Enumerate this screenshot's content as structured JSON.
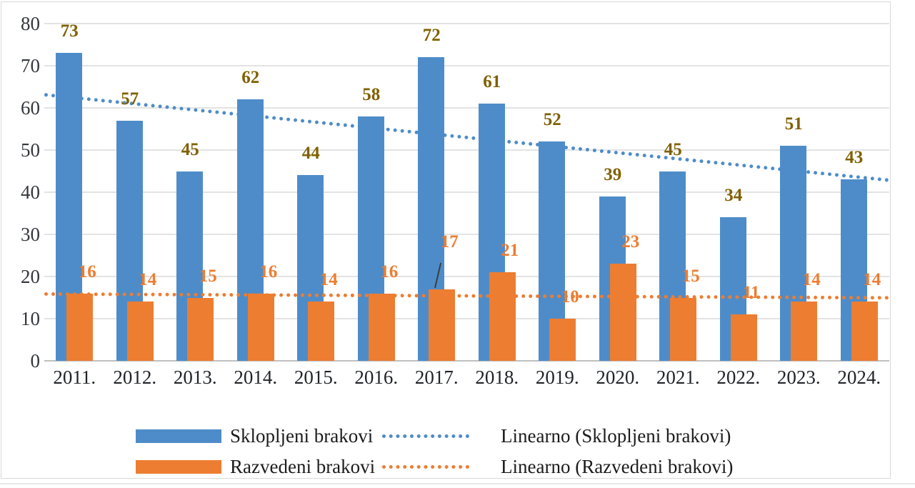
{
  "chart_data": {
    "type": "bar",
    "categories": [
      "2011.",
      "2012.",
      "2013.",
      "2014.",
      "2015.",
      "2016.",
      "2017.",
      "2018.",
      "2019.",
      "2020.",
      "2021.",
      "2022.",
      "2023.",
      "2024."
    ],
    "series": [
      {
        "name": "Sklopljeni brakovi",
        "values": [
          73,
          57,
          45,
          62,
          44,
          58,
          72,
          61,
          52,
          39,
          45,
          34,
          51,
          43
        ],
        "color": "#4e8cc9",
        "label_color": "#7f6000"
      },
      {
        "name": "Razvedeni brakovi",
        "values": [
          16,
          14,
          15,
          16,
          14,
          16,
          17,
          21,
          10,
          23,
          15,
          11,
          14,
          14
        ],
        "color": "#ed7d31",
        "label_color": "#ed7d31"
      }
    ],
    "trendlines": [
      {
        "name": "Linearno (Sklopljeni brakovi)",
        "color": "#4e8cc9",
        "style": "dotted",
        "start_value": 63.6,
        "end_value": 43.3
      },
      {
        "name": "Linearno (Razvedeni brakovi)",
        "color": "#ed7d31",
        "style": "dotted",
        "start_value": 16.3,
        "end_value": 15.4
      }
    ],
    "title": "",
    "xlabel": "",
    "ylabel": "",
    "ylim": [
      0,
      80
    ],
    "yticks": [
      0,
      10,
      20,
      30,
      40,
      50,
      60,
      70,
      80
    ],
    "grid": "horizontal",
    "legend_position": "bottom",
    "callout": {
      "category": "2017.",
      "series": "Razvedeni brakovi",
      "note": "data label raised above bar with leader line"
    }
  },
  "legend": {
    "items": [
      {
        "label": "Sklopljeni brakovi",
        "swatch": "bar",
        "color": "#4e8cc9"
      },
      {
        "label": "Razvedeni brakovi",
        "swatch": "bar",
        "color": "#ed7d31"
      },
      {
        "label": "Linearno (Sklopljeni brakovi)",
        "swatch": "dotted-line",
        "color": "#4e8cc9"
      },
      {
        "label": "Linearno (Razvedeni brakovi)",
        "swatch": "dotted-line",
        "color": "#ed7d31"
      }
    ]
  }
}
